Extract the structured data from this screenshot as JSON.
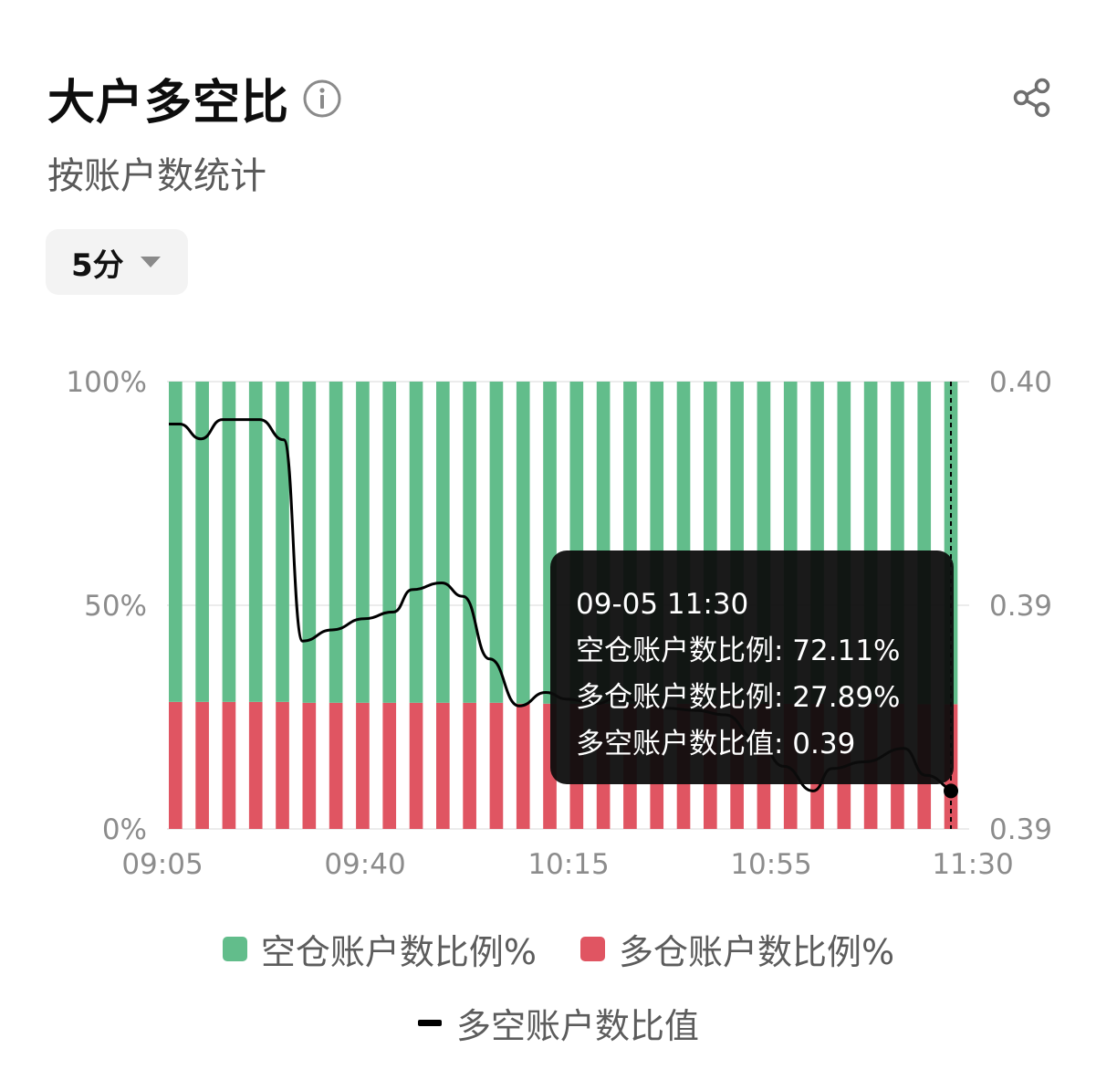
{
  "header": {
    "title": "大户多空比",
    "subtitle": "按账户数统计",
    "info_icon": "info-circle-icon",
    "share_icon": "share-icon"
  },
  "interval_select": {
    "selected": "5分",
    "icon": "caret-down-icon"
  },
  "colors": {
    "short": "#62bd8b",
    "long": "#e05562",
    "ratio_line": "#000000",
    "grid": "#ececec",
    "axis_text": "#8c8c8c"
  },
  "chart_data": {
    "type": "bar",
    "stacked": true,
    "y_left": {
      "ticks": [
        "100%",
        "50%",
        "0%"
      ],
      "range": [
        0,
        100
      ]
    },
    "y_right": {
      "ticks": [
        "0.40",
        "0.39",
        "0.39"
      ]
    },
    "x_tick_labels": [
      "09:05",
      "09:40",
      "10:15",
      "10:55",
      "11:30"
    ],
    "bar_count": 30,
    "series": [
      {
        "name": "空仓账户数比例%",
        "type": "bar",
        "values": [
          71.6,
          71.6,
          71.6,
          71.6,
          71.6,
          71.8,
          71.8,
          71.8,
          71.8,
          71.8,
          71.8,
          71.8,
          71.8,
          72.0,
          72.0,
          72.0,
          72.0,
          72.0,
          72.0,
          72.0,
          72.0,
          72.0,
          72.0,
          72.0,
          72.0,
          72.0,
          72.0,
          72.0,
          72.1,
          72.11
        ]
      },
      {
        "name": "多仓账户数比例%",
        "type": "bar",
        "values": [
          28.4,
          28.4,
          28.4,
          28.4,
          28.4,
          28.2,
          28.2,
          28.2,
          28.2,
          28.2,
          28.2,
          28.2,
          28.2,
          28.0,
          28.0,
          28.0,
          28.0,
          28.0,
          28.0,
          28.0,
          28.0,
          28.0,
          28.0,
          28.0,
          28.0,
          28.0,
          28.0,
          28.0,
          27.9,
          27.89
        ]
      },
      {
        "name": "多空账户数比值",
        "type": "line",
        "values": [
          0.3985,
          0.3983,
          0.3988,
          0.3988,
          0.3983,
          0.3936,
          0.3939,
          0.3942,
          0.3944,
          0.3951,
          0.3953,
          0.3949,
          0.3936,
          0.3928,
          0.3932,
          0.3929,
          0.3931,
          0.3929,
          0.3928,
          0.3929,
          0.3927,
          0.3926,
          0.3925,
          0.3923,
          0.3917,
          0.3919,
          0.392,
          0.3922,
          0.3917,
          0.3915
        ]
      }
    ],
    "ratio_line_pct_points": [
      [
        0,
        90.5
      ],
      [
        0.4,
        90.5
      ],
      [
        1.2,
        87.2
      ],
      [
        2,
        91.5
      ],
      [
        3.4,
        91.5
      ],
      [
        4.3,
        87
      ],
      [
        5,
        42
      ],
      [
        6.1,
        44.5
      ],
      [
        7.3,
        47
      ],
      [
        8.4,
        48.5
      ],
      [
        9.1,
        53.5
      ],
      [
        10.2,
        55
      ],
      [
        11,
        52
      ],
      [
        12,
        38
      ],
      [
        13.1,
        27.5
      ],
      [
        14.1,
        30.5
      ],
      [
        14.9,
        29
      ],
      [
        16,
        28
      ],
      [
        16.8,
        29.5
      ],
      [
        17.8,
        28.5
      ],
      [
        18.6,
        27
      ],
      [
        19.7,
        26.5
      ],
      [
        20.8,
        25.5
      ],
      [
        22,
        20
      ],
      [
        23,
        14
      ],
      [
        24.1,
        8.5
      ],
      [
        24.8,
        13.5
      ],
      [
        26,
        15
      ],
      [
        27.5,
        18
      ],
      [
        28.3,
        12
      ],
      [
        29.5,
        8.5
      ]
    ],
    "selected_index": 29,
    "legend_position": "bottom",
    "tooltip": {
      "time": "09-05 11:30",
      "short_label": "空仓账户数比例: 72.11%",
      "long_label": "多仓账户数比例: 27.89%",
      "ratio_label": "多空账户数比值: 0.39"
    }
  },
  "legend": {
    "short": "空仓账户数比例%",
    "long": "多仓账户数比例%",
    "ratio": "多空账户数比值"
  }
}
